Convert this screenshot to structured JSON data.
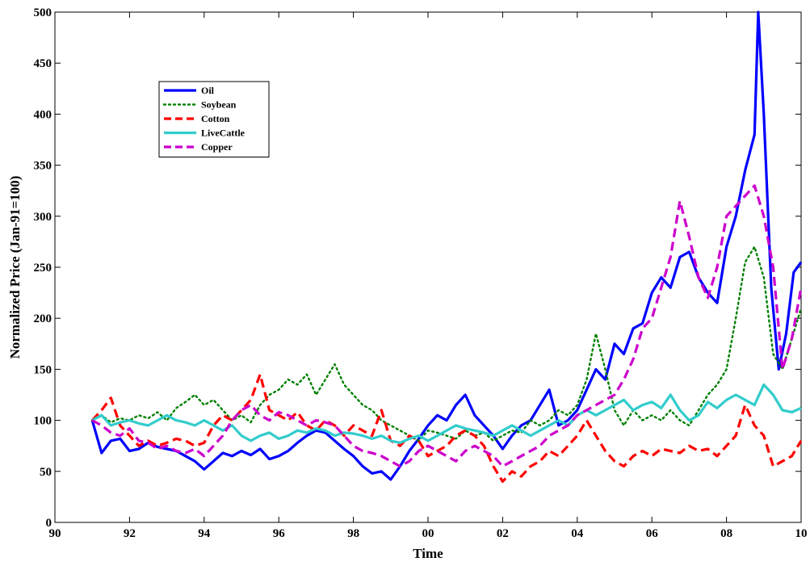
{
  "chart_data": {
    "type": "line",
    "title": "",
    "xlabel": "Time",
    "ylabel": "Normalized Price (Jan-91=100)",
    "xlim": [
      1990,
      2010
    ],
    "ylim": [
      0,
      500
    ],
    "x_ticks": [
      1990,
      1992,
      1994,
      1996,
      1998,
      2000,
      2002,
      2004,
      2006,
      2008,
      2010
    ],
    "x_tick_labels": [
      "90",
      "92",
      "94",
      "96",
      "98",
      "00",
      "02",
      "04",
      "06",
      "08",
      "10"
    ],
    "y_ticks": [
      0,
      50,
      100,
      150,
      200,
      250,
      300,
      350,
      400,
      450,
      500
    ],
    "y_tick_labels": [
      "0",
      "50",
      "100",
      "150",
      "200",
      "250",
      "300",
      "350",
      "400",
      "450",
      "500"
    ],
    "grid": false,
    "legend_position": "top-left",
    "series": [
      {
        "name": "Oil",
        "color": "#0000ff",
        "style": "solid",
        "x": [
          1991.0,
          1991.25,
          1991.5,
          1991.75,
          1992.0,
          1992.25,
          1992.5,
          1992.75,
          1993.0,
          1993.25,
          1993.5,
          1993.75,
          1994.0,
          1994.25,
          1994.5,
          1994.75,
          1995.0,
          1995.25,
          1995.5,
          1995.75,
          1996.0,
          1996.25,
          1996.5,
          1996.75,
          1997.0,
          1997.25,
          1997.5,
          1997.75,
          1998.0,
          1998.25,
          1998.5,
          1998.75,
          1999.0,
          1999.25,
          1999.5,
          1999.75,
          2000.0,
          2000.25,
          2000.5,
          2000.75,
          2001.0,
          2001.25,
          2001.5,
          2001.75,
          2002.0,
          2002.25,
          2002.5,
          2002.75,
          2003.0,
          2003.25,
          2003.5,
          2003.75,
          2004.0,
          2004.25,
          2004.5,
          2004.75,
          2005.0,
          2005.25,
          2005.5,
          2005.75,
          2006.0,
          2006.25,
          2006.5,
          2006.75,
          2007.0,
          2007.25,
          2007.5,
          2007.75,
          2008.0,
          2008.25,
          2008.5,
          2008.75,
          2008.85,
          2009.0,
          2009.2,
          2009.4,
          2009.6,
          2009.8,
          2010.0
        ],
        "values": [
          100,
          68,
          80,
          82,
          70,
          72,
          78,
          74,
          72,
          70,
          65,
          60,
          52,
          60,
          68,
          65,
          70,
          66,
          72,
          62,
          65,
          70,
          78,
          85,
          90,
          88,
          80,
          72,
          65,
          55,
          48,
          50,
          42,
          55,
          70,
          82,
          95,
          105,
          100,
          115,
          125,
          105,
          95,
          85,
          72,
          85,
          95,
          100,
          115,
          130,
          95,
          100,
          110,
          130,
          150,
          140,
          175,
          165,
          190,
          195,
          225,
          240,
          230,
          260,
          265,
          240,
          225,
          215,
          270,
          300,
          345,
          380,
          500,
          400,
          230,
          150,
          185,
          245,
          255
        ]
      },
      {
        "name": "Soybean",
        "color": "#008000",
        "style": "dotted",
        "x": [
          1991.0,
          1991.25,
          1991.5,
          1991.75,
          1992.0,
          1992.25,
          1992.5,
          1992.75,
          1993.0,
          1993.25,
          1993.5,
          1993.75,
          1994.0,
          1994.25,
          1994.5,
          1994.75,
          1995.0,
          1995.25,
          1995.5,
          1995.75,
          1996.0,
          1996.25,
          1996.5,
          1996.75,
          1997.0,
          1997.25,
          1997.5,
          1997.75,
          1998.0,
          1998.25,
          1998.5,
          1998.75,
          1999.0,
          1999.25,
          1999.5,
          1999.75,
          2000.0,
          2000.25,
          2000.5,
          2000.75,
          2001.0,
          2001.25,
          2001.5,
          2001.75,
          2002.0,
          2002.25,
          2002.5,
          2002.75,
          2003.0,
          2003.25,
          2003.5,
          2003.75,
          2004.0,
          2004.25,
          2004.5,
          2004.75,
          2005.0,
          2005.25,
          2005.5,
          2005.75,
          2006.0,
          2006.25,
          2006.5,
          2006.75,
          2007.0,
          2007.25,
          2007.5,
          2007.75,
          2008.0,
          2008.25,
          2008.5,
          2008.75,
          2009.0,
          2009.25,
          2009.5,
          2009.75,
          2010.0
        ],
        "values": [
          100,
          105,
          98,
          102,
          100,
          105,
          102,
          108,
          100,
          112,
          118,
          125,
          115,
          120,
          110,
          100,
          105,
          98,
          115,
          125,
          130,
          140,
          135,
          145,
          125,
          140,
          155,
          135,
          125,
          115,
          110,
          100,
          95,
          90,
          85,
          80,
          90,
          88,
          85,
          82,
          90,
          85,
          88,
          80,
          85,
          90,
          88,
          100,
          95,
          100,
          110,
          105,
          115,
          140,
          185,
          150,
          110,
          95,
          110,
          100,
          105,
          100,
          110,
          100,
          95,
          110,
          125,
          135,
          150,
          200,
          255,
          270,
          240,
          165,
          150,
          180,
          210
        ]
      },
      {
        "name": "Cotton",
        "color": "#ff0000",
        "style": "dashed",
        "x": [
          1991.0,
          1991.25,
          1991.5,
          1991.75,
          1992.0,
          1992.25,
          1992.5,
          1992.75,
          1993.0,
          1993.25,
          1993.5,
          1993.75,
          1994.0,
          1994.25,
          1994.5,
          1994.75,
          1995.0,
          1995.25,
          1995.5,
          1995.75,
          1996.0,
          1996.25,
          1996.5,
          1996.75,
          1997.0,
          1997.25,
          1997.5,
          1997.75,
          1998.0,
          1998.25,
          1998.5,
          1998.75,
          1999.0,
          1999.25,
          1999.5,
          1999.75,
          2000.0,
          2000.25,
          2000.5,
          2000.75,
          2001.0,
          2001.25,
          2001.5,
          2001.75,
          2002.0,
          2002.25,
          2002.5,
          2002.75,
          2003.0,
          2003.25,
          2003.5,
          2003.75,
          2004.0,
          2004.25,
          2004.5,
          2004.75,
          2005.0,
          2005.25,
          2005.5,
          2005.75,
          2006.0,
          2006.25,
          2006.5,
          2006.75,
          2007.0,
          2007.25,
          2007.5,
          2007.75,
          2008.0,
          2008.25,
          2008.5,
          2008.75,
          2009.0,
          2009.25,
          2009.5,
          2009.75,
          2010.0
        ],
        "values": [
          100,
          110,
          122,
          95,
          85,
          75,
          80,
          75,
          78,
          82,
          80,
          75,
          78,
          95,
          105,
          100,
          110,
          120,
          145,
          110,
          105,
          100,
          108,
          95,
          90,
          100,
          95,
          85,
          95,
          90,
          85,
          110,
          80,
          75,
          85,
          80,
          65,
          70,
          75,
          85,
          90,
          85,
          75,
          55,
          40,
          50,
          45,
          55,
          60,
          70,
          65,
          75,
          85,
          100,
          85,
          70,
          60,
          55,
          65,
          70,
          65,
          72,
          70,
          68,
          75,
          70,
          72,
          65,
          75,
          85,
          115,
          95,
          85,
          55,
          60,
          65,
          80
        ]
      },
      {
        "name": "LiveCattle",
        "color": "#33cccc",
        "style": "solid",
        "x": [
          1991.0,
          1991.25,
          1991.5,
          1991.75,
          1992.0,
          1992.25,
          1992.5,
          1992.75,
          1993.0,
          1993.25,
          1993.5,
          1993.75,
          1994.0,
          1994.25,
          1994.5,
          1994.75,
          1995.0,
          1995.25,
          1995.5,
          1995.75,
          1996.0,
          1996.25,
          1996.5,
          1996.75,
          1997.0,
          1997.25,
          1997.5,
          1997.75,
          1998.0,
          1998.25,
          1998.5,
          1998.75,
          1999.0,
          1999.25,
          1999.5,
          1999.75,
          2000.0,
          2000.25,
          2000.5,
          2000.75,
          2001.0,
          2001.25,
          2001.5,
          2001.75,
          2002.0,
          2002.25,
          2002.5,
          2002.75,
          2003.0,
          2003.25,
          2003.5,
          2003.75,
          2004.0,
          2004.25,
          2004.5,
          2004.75,
          2005.0,
          2005.25,
          2005.5,
          2005.75,
          2006.0,
          2006.25,
          2006.5,
          2006.75,
          2007.0,
          2007.25,
          2007.5,
          2007.75,
          2008.0,
          2008.25,
          2008.5,
          2008.75,
          2009.0,
          2009.25,
          2009.5,
          2009.75,
          2010.0
        ],
        "values": [
          100,
          105,
          95,
          98,
          100,
          97,
          95,
          100,
          105,
          100,
          98,
          95,
          100,
          95,
          90,
          95,
          85,
          80,
          85,
          88,
          82,
          85,
          90,
          88,
          92,
          90,
          85,
          88,
          87,
          85,
          82,
          85,
          80,
          78,
          82,
          85,
          80,
          85,
          90,
          95,
          92,
          90,
          88,
          85,
          90,
          95,
          90,
          85,
          90,
          95,
          100,
          95,
          105,
          110,
          105,
          110,
          115,
          120,
          110,
          115,
          118,
          112,
          125,
          110,
          100,
          105,
          118,
          112,
          120,
          125,
          120,
          115,
          135,
          125,
          110,
          108,
          112
        ]
      },
      {
        "name": "Copper",
        "color": "#cc00cc",
        "style": "dashed",
        "x": [
          1991.0,
          1991.25,
          1991.5,
          1991.75,
          1992.0,
          1992.25,
          1992.5,
          1992.75,
          1993.0,
          1993.25,
          1993.5,
          1993.75,
          1994.0,
          1994.25,
          1994.5,
          1994.75,
          1995.0,
          1995.25,
          1995.5,
          1995.75,
          1996.0,
          1996.25,
          1996.5,
          1996.75,
          1997.0,
          1997.25,
          1997.5,
          1997.75,
          1998.0,
          1998.25,
          1998.5,
          1998.75,
          1999.0,
          1999.25,
          1999.5,
          1999.75,
          2000.0,
          2000.25,
          2000.5,
          2000.75,
          2001.0,
          2001.25,
          2001.5,
          2001.75,
          2002.0,
          2002.25,
          2002.5,
          2002.75,
          2003.0,
          2003.25,
          2003.5,
          2003.75,
          2004.0,
          2004.25,
          2004.5,
          2004.75,
          2005.0,
          2005.25,
          2005.5,
          2005.75,
          2006.0,
          2006.25,
          2006.5,
          2006.75,
          2007.0,
          2007.25,
          2007.5,
          2007.75,
          2008.0,
          2008.25,
          2008.5,
          2008.75,
          2009.0,
          2009.25,
          2009.5,
          2009.75,
          2010.0
        ],
        "values": [
          100,
          95,
          88,
          85,
          92,
          80,
          78,
          72,
          75,
          70,
          68,
          72,
          65,
          75,
          85,
          100,
          110,
          115,
          105,
          100,
          108,
          105,
          100,
          95,
          100,
          98,
          95,
          85,
          75,
          70,
          68,
          65,
          60,
          55,
          60,
          70,
          75,
          70,
          65,
          60,
          70,
          75,
          70,
          65,
          55,
          60,
          65,
          70,
          75,
          85,
          90,
          95,
          105,
          110,
          115,
          120,
          125,
          140,
          160,
          190,
          200,
          230,
          260,
          315,
          280,
          240,
          220,
          250,
          300,
          310,
          320,
          330,
          300,
          250,
          150,
          180,
          230
        ]
      }
    ]
  }
}
